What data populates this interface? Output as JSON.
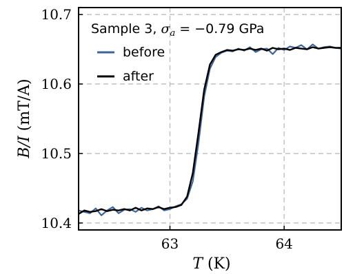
{
  "chart_data": {
    "type": "line",
    "title": "",
    "legend_title_prefix": "Sample 3, ",
    "legend_title_sigma": "σ",
    "legend_title_sub": "a",
    "legend_title_rest": " = −0.79 GPa",
    "xlabel_var": "T",
    "xlabel_unit": " (K)",
    "ylabel_var": "B/I",
    "ylabel_unit": " (mT/A)",
    "xlim": [
      62.2,
      64.5
    ],
    "ylim": [
      10.39,
      10.71
    ],
    "x_ticks": [
      63,
      64
    ],
    "x_tick_labels": [
      "63",
      "64"
    ],
    "y_ticks": [
      10.4,
      10.5,
      10.6,
      10.7
    ],
    "y_tick_labels": [
      "10.4",
      "10.5",
      "10.6",
      "10.7"
    ],
    "grid": true,
    "legend_position": "top-left",
    "series": [
      {
        "name": "before",
        "color": "#3d6496",
        "x": [
          62.2,
          62.25,
          62.3,
          62.35,
          62.4,
          62.45,
          62.5,
          62.55,
          62.6,
          62.65,
          62.7,
          62.75,
          62.8,
          62.85,
          62.9,
          62.95,
          63.0,
          63.05,
          63.1,
          63.15,
          63.2,
          63.25,
          63.3,
          63.35,
          63.4,
          63.45,
          63.5,
          63.55,
          63.6,
          63.65,
          63.7,
          63.75,
          63.8,
          63.85,
          63.9,
          63.95,
          64.0,
          64.05,
          64.1,
          64.15,
          64.2,
          64.25,
          64.3,
          64.35,
          64.4,
          64.45,
          64.5
        ],
        "values": [
          10.418,
          10.416,
          10.414,
          10.421,
          10.411,
          10.418,
          10.423,
          10.414,
          10.419,
          10.42,
          10.416,
          10.422,
          10.418,
          10.42,
          10.424,
          10.418,
          10.42,
          10.424,
          10.427,
          10.435,
          10.46,
          10.515,
          10.582,
          10.622,
          10.639,
          10.645,
          10.648,
          10.647,
          10.651,
          10.648,
          10.653,
          10.646,
          10.65,
          10.651,
          10.643,
          10.652,
          10.649,
          10.654,
          10.652,
          10.656,
          10.65,
          10.657,
          10.651,
          10.653,
          10.654,
          10.652,
          10.651
        ]
      },
      {
        "name": "after",
        "color": "#000000",
        "x": [
          62.2,
          62.25,
          62.3,
          62.35,
          62.4,
          62.45,
          62.5,
          62.55,
          62.6,
          62.65,
          62.7,
          62.75,
          62.8,
          62.85,
          62.9,
          62.95,
          63.0,
          63.05,
          63.1,
          63.15,
          63.2,
          63.25,
          63.3,
          63.35,
          63.4,
          63.45,
          63.5,
          63.55,
          63.6,
          63.65,
          63.7,
          63.75,
          63.8,
          63.85,
          63.9,
          63.95,
          64.0,
          64.05,
          64.1,
          64.15,
          64.2,
          64.25,
          64.3,
          64.35,
          64.4,
          64.45,
          64.5
        ],
        "values": [
          10.413,
          10.418,
          10.416,
          10.417,
          10.42,
          10.417,
          10.419,
          10.418,
          10.42,
          10.418,
          10.422,
          10.418,
          10.421,
          10.42,
          10.423,
          10.42,
          10.422,
          10.423,
          10.426,
          10.438,
          10.472,
          10.53,
          10.592,
          10.628,
          10.642,
          10.646,
          10.649,
          10.648,
          10.65,
          10.649,
          10.651,
          10.649,
          10.651,
          10.648,
          10.652,
          10.65,
          10.651,
          10.649,
          10.652,
          10.651,
          10.65,
          10.653,
          10.651,
          10.652,
          10.653,
          10.652,
          10.652
        ]
      }
    ]
  }
}
